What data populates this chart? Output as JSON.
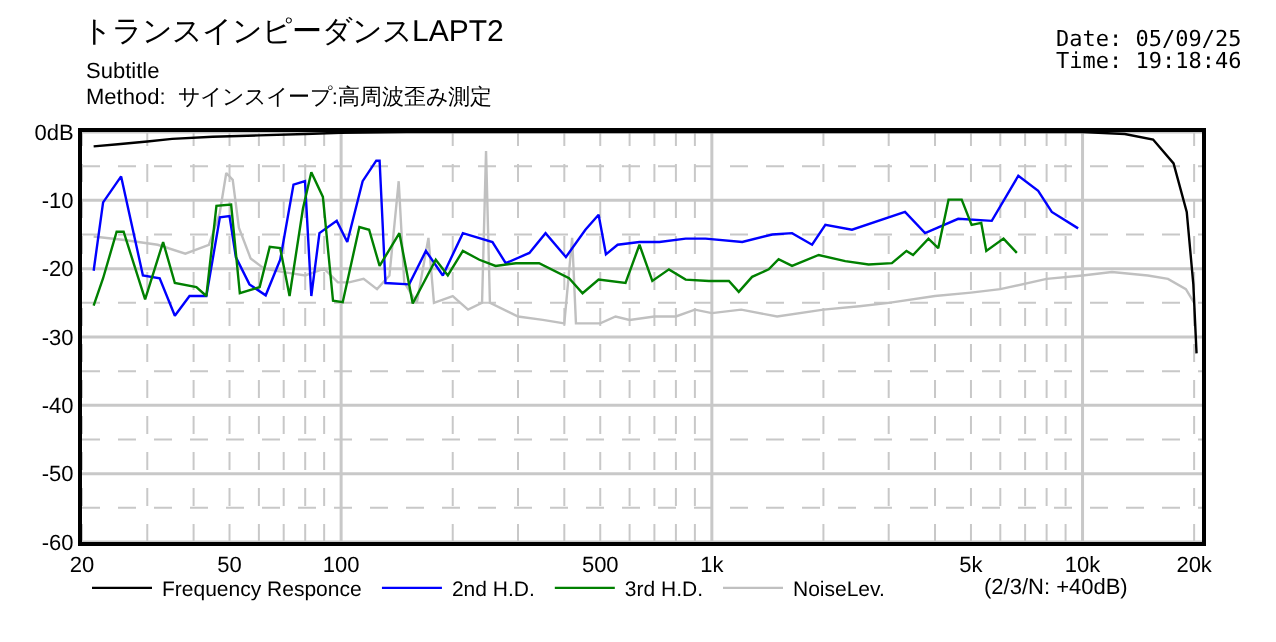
{
  "chart_data": {
    "type": "line",
    "title": "トランスインピーダンスLAPT2",
    "subtitle": "Subtitle",
    "annotations": [
      "Method:  サインスイープ:高周波歪み測定",
      "Date: 05/09/25",
      "Time: 19:18:46",
      "(2/3/N: +40dB)"
    ],
    "log": "x",
    "grid": true,
    "legend": "bottom",
    "marker": "none",
    "line_style": "solid",
    "xlim": [
      20,
      21000
    ],
    "xticks": [
      20,
      {
        "value": 30,
        "label": null
      },
      {
        "value": 40,
        "label": null
      },
      50,
      {
        "value": 60,
        "label": null
      },
      {
        "value": 70,
        "label": null
      },
      {
        "value": 80,
        "label": null
      },
      {
        "value": 90,
        "label": null
      },
      100,
      {
        "value": 200,
        "label": null
      },
      {
        "value": 300,
        "label": null
      },
      {
        "value": 400,
        "label": null
      },
      500,
      {
        "value": 600,
        "label": null
      },
      {
        "value": 700,
        "label": null
      },
      {
        "value": 800,
        "label": null
      },
      {
        "value": 900,
        "label": null
      },
      {
        "value": 1000,
        "label": "1k"
      },
      {
        "value": 2000,
        "label": null
      },
      {
        "value": 3000,
        "label": null
      },
      {
        "value": 4000,
        "label": null
      },
      {
        "value": 5000,
        "label": "5k"
      },
      {
        "value": 6000,
        "label": null
      },
      {
        "value": 7000,
        "label": null
      },
      {
        "value": 8000,
        "label": null
      },
      {
        "value": 9000,
        "label": null
      },
      {
        "value": 10000,
        "label": "10k"
      },
      {
        "value": 20000,
        "label": "20k"
      }
    ],
    "ylim": [
      -60,
      0
    ],
    "yticks": [
      {
        "value": 0,
        "label": "0dB"
      },
      {
        "value": -5,
        "label": null
      },
      -10,
      {
        "value": -15,
        "label": null
      },
      -20,
      {
        "value": -25,
        "label": null
      },
      -30,
      {
        "value": -35,
        "label": null
      },
      -40,
      {
        "value": -45,
        "label": null
      },
      -50,
      {
        "value": -55,
        "label": null
      },
      -60
    ],
    "series": [
      {
        "name": "Frequency Responce",
        "color": "#000000",
        "x": [
          21.5,
          25,
          30,
          35,
          45,
          60,
          80,
          100,
          150,
          1000,
          10000,
          13000,
          15500,
          17600,
          19100,
          19900,
          20300
        ],
        "values": [
          -2.1,
          -1.8,
          -1.4,
          -1.0,
          -0.7,
          -0.5,
          -0.3,
          -0.1,
          0,
          0,
          0,
          -0.3,
          -1.1,
          -4.6,
          -11.7,
          -22.3,
          -32.4
        ]
      },
      {
        "name": "2nd H.D.",
        "color": "#0000ff",
        "x": [
          21.5,
          22.8,
          25.5,
          29.2,
          32.4,
          35.6,
          39.0,
          43.3,
          47.1,
          50.0,
          52.0,
          56.6,
          62.6,
          68.5,
          74.4,
          79.9,
          83.1,
          87.4,
          97.3,
          103.9,
          114.3,
          124.4,
          127,
          131.7,
          152.6,
          169.3,
          188.1,
          213,
          256,
          278,
          322,
          356,
          404,
          456,
          495,
          518,
          557,
          638,
          722,
          850,
          962,
          1208,
          1455,
          1646,
          1864,
          2024,
          2388,
          3320,
          3760,
          4620,
          5690,
          6710,
          7590,
          8260,
          9730
        ],
        "values": [
          -20.3,
          -10.3,
          -6.5,
          -21,
          -21.4,
          -26.9,
          -24,
          -24,
          -12.5,
          -12.3,
          -18.3,
          -22.3,
          -23.9,
          -18.7,
          -7.7,
          -7.2,
          -24,
          -14.8,
          -13,
          -16.1,
          -7.2,
          -4.2,
          -4.2,
          -22.1,
          -22.3,
          -17.4,
          -21,
          -14.8,
          -16.1,
          -19.2,
          -17.7,
          -14.8,
          -18.3,
          -14.3,
          -12.1,
          -17.9,
          -16.5,
          -16.1,
          -16.1,
          -15.6,
          -15.6,
          -16.1,
          -15,
          -14.8,
          -16.5,
          -13.6,
          -14.3,
          -11.7,
          -14.8,
          -12.7,
          -13,
          -6.4,
          -8.6,
          -11.7,
          -14.1
        ]
      },
      {
        "name": "3rd H.D.",
        "color": "#008000",
        "x": [
          21.5,
          22.8,
          24.8,
          25.9,
          29.6,
          33.1,
          35.6,
          40.7,
          43.3,
          46.1,
          50.5,
          53.3,
          60.3,
          64.2,
          68.5,
          72.6,
          78.9,
          83.1,
          89.3,
          95.1,
          101,
          112,
          119,
          127,
          143.6,
          156,
          180,
          194,
          213,
          236,
          261,
          296,
          342,
          412,
          448,
          495,
          585,
          638,
          691,
          766,
          850,
          982,
          1112,
          1182,
          1284,
          1424,
          1514,
          1646,
          1942,
          2290,
          2648,
          3060,
          3350,
          3490,
          3840,
          4080,
          4350,
          4720,
          5020,
          5330,
          5500,
          6120,
          6650
        ],
        "values": [
          -25.4,
          -21.4,
          -14.6,
          -14.6,
          -24.5,
          -16.1,
          -22.1,
          -22.7,
          -24,
          -10.8,
          -10.6,
          -23.6,
          -22.7,
          -16.8,
          -17,
          -24,
          -11.2,
          -5.9,
          -9.5,
          -24.7,
          -24.9,
          -13.9,
          -14.3,
          -19.6,
          -14.8,
          -25.1,
          -18.7,
          -21,
          -17.4,
          -18.7,
          -19.6,
          -19.2,
          -19.2,
          -21.4,
          -23.6,
          -21.6,
          -22.1,
          -16.5,
          -21.8,
          -20.1,
          -21.6,
          -21.8,
          -21.8,
          -23.4,
          -21.2,
          -20.1,
          -18.6,
          -19.6,
          -18,
          -18.9,
          -19.4,
          -19.2,
          -17.4,
          -18,
          -15.6,
          -17,
          -9.9,
          -9.9,
          -13.6,
          -13.3,
          -17.4,
          -15.6,
          -17.7
        ]
      },
      {
        "name": "NoiseLev.",
        "color": "#c0c0c0",
        "x": [
          21.5,
          26,
          32,
          38,
          44,
          47,
          49,
          51,
          53,
          57,
          62,
          70,
          80,
          90,
          98,
          105,
          115,
          125,
          135,
          143,
          148,
          160,
          172,
          178,
          200,
          220,
          240,
          246,
          252,
          300,
          350,
          400,
          420,
          430,
          500,
          550,
          600,
          700,
          800,
          900,
          1000,
          1200,
          1500,
          2000,
          2500,
          3000,
          4000,
          5000,
          6000,
          8000,
          10000,
          12000,
          15000,
          17000,
          19000,
          20000
        ],
        "values": [
          -15.3,
          -15.8,
          -16.5,
          -17.8,
          -16.5,
          -12,
          -6,
          -7,
          -14,
          -18.5,
          -20,
          -20.5,
          -21,
          -20,
          -22,
          -22,
          -21.5,
          -23,
          -21,
          -7.2,
          -22,
          -25,
          -15.5,
          -25,
          -24,
          -26,
          -25,
          -2.8,
          -25,
          -27,
          -27.5,
          -28,
          -15.5,
          -28,
          -28,
          -27,
          -27.5,
          -27,
          -27,
          -26,
          -26.5,
          -26,
          -27,
          -26,
          -25.5,
          -25,
          -24,
          -23.5,
          -23,
          -21.5,
          -21,
          -20.5,
          -21,
          -21.5,
          -23,
          -25
        ]
      }
    ]
  }
}
